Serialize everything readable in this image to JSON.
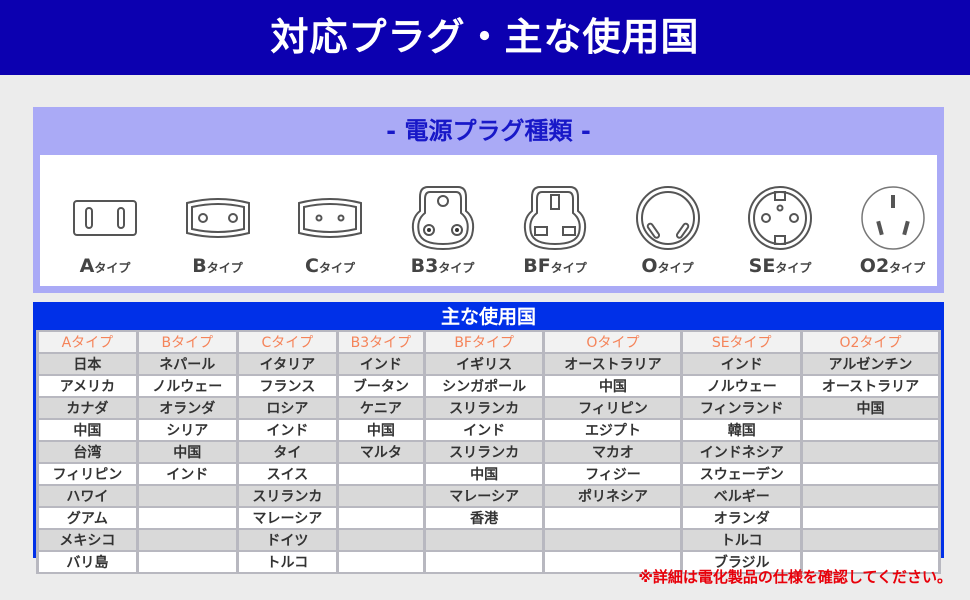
{
  "banner": {
    "title": "対応プラグ・主な使用国"
  },
  "plug_types": {
    "title": "- 電源プラグ種類 -",
    "items": [
      {
        "letter": "A",
        "suffix": "タイプ",
        "icon": "plug-a-icon"
      },
      {
        "letter": "B",
        "suffix": "タイプ",
        "icon": "plug-b-icon"
      },
      {
        "letter": "C",
        "suffix": "タイプ",
        "icon": "plug-c-icon"
      },
      {
        "letter": "B3",
        "suffix": "タイプ",
        "icon": "plug-b3-icon"
      },
      {
        "letter": "BF",
        "suffix": "タイプ",
        "icon": "plug-bf-icon"
      },
      {
        "letter": "O",
        "suffix": "タイプ",
        "icon": "plug-o-icon"
      },
      {
        "letter": "SE",
        "suffix": "タイプ",
        "icon": "plug-se-icon"
      },
      {
        "letter": "O2",
        "suffix": "タイプ",
        "icon": "plug-o2-icon"
      }
    ]
  },
  "countries": {
    "title": "主な使用国",
    "columns": [
      {
        "header": "Aタイプ",
        "cells": [
          "日本",
          "アメリカ",
          "カナダ",
          "中国",
          "台湾",
          "フィリピン",
          "ハワイ",
          "グアム",
          "メキシコ",
          "バリ島"
        ]
      },
      {
        "header": "Bタイプ",
        "cells": [
          "ネパール",
          "ノルウェー",
          "オランダ",
          "シリア",
          "中国",
          "インド",
          "",
          "",
          "",
          ""
        ]
      },
      {
        "header": "Cタイプ",
        "cells": [
          "イタリア",
          "フランス",
          "ロシア",
          "インド",
          "タイ",
          "スイス",
          "スリランカ",
          "マレーシア",
          "ドイツ",
          "トルコ"
        ]
      },
      {
        "header": "B3タイプ",
        "cells": [
          "インド",
          "ブータン",
          "ケニア",
          "中国",
          "マルタ",
          "",
          "",
          "",
          "",
          ""
        ]
      },
      {
        "header": "BFタイプ",
        "cells": [
          "イギリス",
          "シンガポール",
          "スリランカ",
          "インド",
          "スリランカ",
          "中国",
          "マレーシア",
          "香港",
          "",
          ""
        ]
      },
      {
        "header": "Oタイプ",
        "cells": [
          "オーストラリア",
          "中国",
          "フィリピン",
          "エジプト",
          "マカオ",
          "フィジー",
          "ポリネシア",
          "",
          "",
          ""
        ]
      },
      {
        "header": "SEタイプ",
        "cells": [
          "インド",
          "ノルウェー",
          "フィンランド",
          "韓国",
          "インドネシア",
          "スウェーデン",
          "ベルギー",
          "オランダ",
          "トルコ",
          "ブラジル"
        ]
      },
      {
        "header": "O2タイプ",
        "cells": [
          "アルゼンチン",
          "オーストラリア",
          "中国",
          "",
          "",
          "",
          "",
          "",
          "",
          ""
        ]
      }
    ]
  },
  "note": "※詳細は電化製品の仕様を確認してください。",
  "colors": {
    "banner": "#0c00b0",
    "panel": "#aaaaf6",
    "table_border": "#0030e8",
    "header_text": "#f5845a",
    "note": "#e8000a"
  }
}
